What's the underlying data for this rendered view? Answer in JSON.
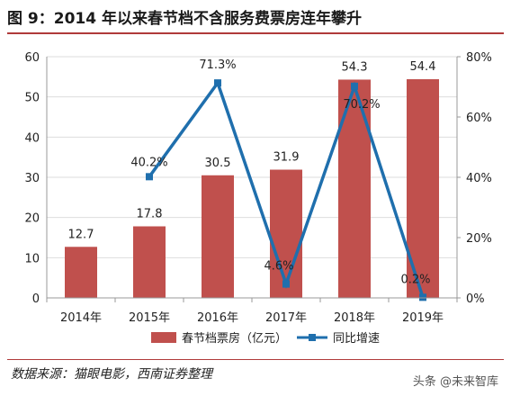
{
  "header": {
    "title": "图 9：2014 年以来春节档不含服务费票房连年攀升"
  },
  "footer": {
    "source": "数据来源：猫眼电影，西南证券整理",
    "watermark": "头条 @未来智库"
  },
  "colors": {
    "bar": "#c0504d",
    "line": "#1f6fad",
    "grid": "#dddddd",
    "axis": "#999999",
    "text": "#222222"
  },
  "chart_data": {
    "type": "bar",
    "title": "",
    "categories": [
      "2014年",
      "2015年",
      "2016年",
      "2017年",
      "2018年",
      "2019年"
    ],
    "ylim": [
      0,
      60
    ],
    "y_ticks": [
      "0",
      "10",
      "20",
      "30",
      "40",
      "50",
      "60"
    ],
    "y2lim": [
      0,
      80
    ],
    "y2_ticks": [
      "0%",
      "20%",
      "40%",
      "60%",
      "80%"
    ],
    "grid": true,
    "legend_position": "bottom",
    "series": [
      {
        "name": "春节档票房（亿元）",
        "type": "bar",
        "axis": "left",
        "values": [
          12.7,
          17.8,
          30.5,
          31.9,
          54.3,
          54.4
        ],
        "labels": [
          "12.7",
          "17.8",
          "30.5",
          "31.9",
          "54.3",
          "54.4"
        ]
      },
      {
        "name": "同比增速",
        "type": "line",
        "axis": "right",
        "values": [
          null,
          40.2,
          71.3,
          4.6,
          70.2,
          0.2
        ],
        "labels": [
          null,
          "40.2%",
          "71.3%",
          "4.6%",
          "70.2%",
          "0.2%"
        ]
      }
    ]
  }
}
